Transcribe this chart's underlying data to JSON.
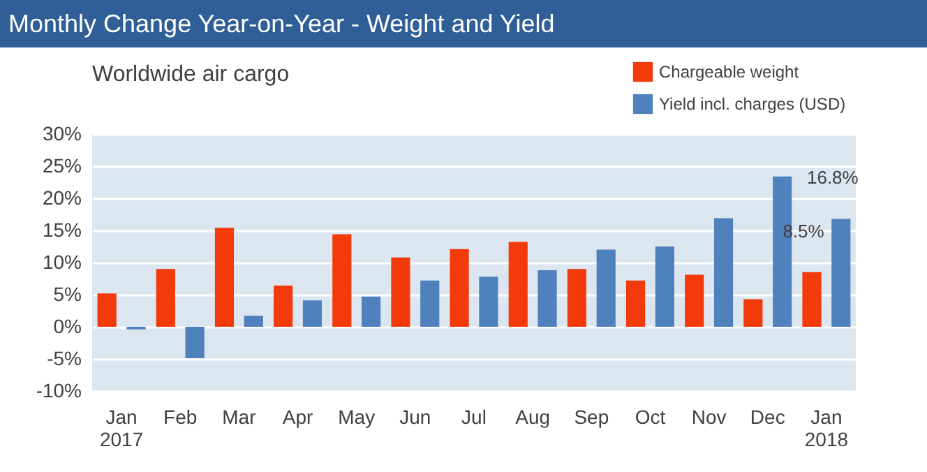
{
  "chart_data": {
    "type": "bar",
    "title": "Monthly Change Year-on-Year - Weight and Yield",
    "subtitle": "Worldwide air cargo",
    "categories": [
      "Jan\n2017",
      "Feb",
      "Mar",
      "Apr",
      "May",
      "Jun",
      "Jul",
      "Aug",
      "Sep",
      "Oct",
      "Nov",
      "Dec",
      "Jan\n2018"
    ],
    "series": [
      {
        "name": "Chargeable weight",
        "color": "#f23a0a",
        "values": [
          5.2,
          9.0,
          15.4,
          6.4,
          14.4,
          10.8,
          12.1,
          13.2,
          9.0,
          7.2,
          8.1,
          4.3,
          8.5
        ],
        "value_labels": [
          null,
          null,
          null,
          null,
          null,
          null,
          null,
          null,
          null,
          null,
          null,
          null,
          "8.5%"
        ]
      },
      {
        "name": "Yield incl. charges (USD)",
        "color": "#4f81bd",
        "values": [
          -0.4,
          -4.9,
          1.7,
          4.1,
          4.7,
          7.2,
          7.8,
          8.8,
          12.0,
          12.5,
          16.9,
          23.4,
          16.8
        ],
        "value_labels": [
          null,
          null,
          null,
          null,
          null,
          null,
          null,
          null,
          null,
          null,
          null,
          null,
          "16.8%"
        ]
      }
    ],
    "ylim": [
      -10,
      30
    ],
    "yticks": [
      {
        "value": -10,
        "label": "-10%"
      },
      {
        "value": -5,
        "label": "-5%"
      },
      {
        "value": 0,
        "label": "0%"
      },
      {
        "value": 5,
        "label": "5%"
      },
      {
        "value": 10,
        "label": "10%"
      },
      {
        "value": 15,
        "label": "15%"
      },
      {
        "value": 20,
        "label": "20%"
      },
      {
        "value": 25,
        "label": "25%"
      },
      {
        "value": 30,
        "label": "30%"
      }
    ],
    "grid": "y",
    "legend": "top right"
  }
}
